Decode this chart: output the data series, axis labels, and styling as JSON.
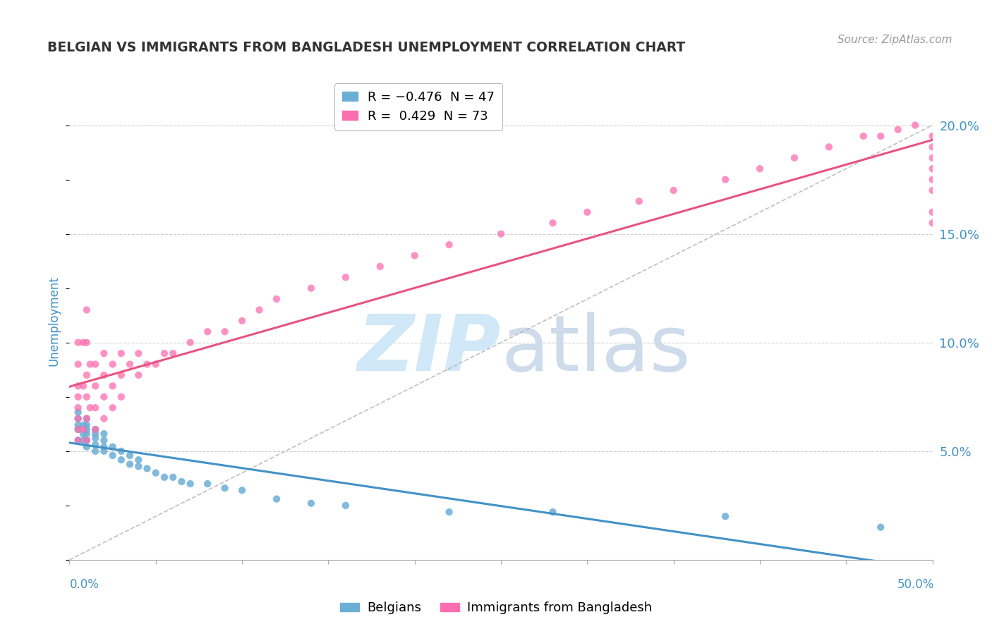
{
  "title": "BELGIAN VS IMMIGRANTS FROM BANGLADESH UNEMPLOYMENT CORRELATION CHART",
  "source": "Source: ZipAtlas.com",
  "ylabel": "Unemployment",
  "blue_color": "#6baed6",
  "pink_color": "#fb6eb0",
  "blue_line_color": "#4292c6",
  "pink_line_color": "#e75480",
  "diag_line_color": "#b0b0b0",
  "background_color": "#ffffff",
  "grid_color": "#d0d0d0",
  "title_color": "#333333",
  "axis_label_color": "#4292c6",
  "watermark_color": "#d0e8f7",
  "xlim": [
    0.0,
    0.5
  ],
  "ylim": [
    0.0,
    0.22
  ],
  "belgians_x": [
    0.005,
    0.005,
    0.005,
    0.005,
    0.005,
    0.008,
    0.008,
    0.008,
    0.01,
    0.01,
    0.01,
    0.01,
    0.01,
    0.01,
    0.015,
    0.015,
    0.015,
    0.015,
    0.015,
    0.02,
    0.02,
    0.02,
    0.02,
    0.025,
    0.025,
    0.03,
    0.03,
    0.035,
    0.035,
    0.04,
    0.04,
    0.045,
    0.05,
    0.055,
    0.06,
    0.065,
    0.07,
    0.08,
    0.09,
    0.1,
    0.12,
    0.14,
    0.16,
    0.22,
    0.28,
    0.38,
    0.47
  ],
  "belgians_y": [
    0.055,
    0.06,
    0.062,
    0.065,
    0.068,
    0.055,
    0.058,
    0.062,
    0.052,
    0.055,
    0.058,
    0.06,
    0.062,
    0.065,
    0.05,
    0.053,
    0.056,
    0.058,
    0.06,
    0.05,
    0.052,
    0.055,
    0.058,
    0.048,
    0.052,
    0.046,
    0.05,
    0.044,
    0.048,
    0.043,
    0.046,
    0.042,
    0.04,
    0.038,
    0.038,
    0.036,
    0.035,
    0.035,
    0.033,
    0.032,
    0.028,
    0.026,
    0.025,
    0.022,
    0.022,
    0.02,
    0.015
  ],
  "bangladesh_x": [
    0.005,
    0.005,
    0.005,
    0.005,
    0.005,
    0.005,
    0.005,
    0.005,
    0.008,
    0.008,
    0.008,
    0.01,
    0.01,
    0.01,
    0.01,
    0.01,
    0.01,
    0.012,
    0.012,
    0.015,
    0.015,
    0.015,
    0.015,
    0.02,
    0.02,
    0.02,
    0.02,
    0.025,
    0.025,
    0.025,
    0.03,
    0.03,
    0.03,
    0.035,
    0.04,
    0.04,
    0.045,
    0.05,
    0.055,
    0.06,
    0.07,
    0.08,
    0.09,
    0.1,
    0.11,
    0.12,
    0.14,
    0.16,
    0.18,
    0.2,
    0.22,
    0.25,
    0.28,
    0.3,
    0.33,
    0.35,
    0.38,
    0.4,
    0.42,
    0.44,
    0.46,
    0.47,
    0.48,
    0.49,
    0.5,
    0.5,
    0.5,
    0.5,
    0.5,
    0.5,
    0.5,
    0.5
  ],
  "bangladesh_y": [
    0.055,
    0.06,
    0.065,
    0.07,
    0.075,
    0.08,
    0.09,
    0.1,
    0.06,
    0.08,
    0.1,
    0.055,
    0.065,
    0.075,
    0.085,
    0.1,
    0.115,
    0.07,
    0.09,
    0.06,
    0.07,
    0.08,
    0.09,
    0.065,
    0.075,
    0.085,
    0.095,
    0.07,
    0.08,
    0.09,
    0.075,
    0.085,
    0.095,
    0.09,
    0.085,
    0.095,
    0.09,
    0.09,
    0.095,
    0.095,
    0.1,
    0.105,
    0.105,
    0.11,
    0.115,
    0.12,
    0.125,
    0.13,
    0.135,
    0.14,
    0.145,
    0.15,
    0.155,
    0.16,
    0.165,
    0.17,
    0.175,
    0.18,
    0.185,
    0.19,
    0.195,
    0.195,
    0.198,
    0.2,
    0.155,
    0.16,
    0.17,
    0.175,
    0.18,
    0.185,
    0.19,
    0.195
  ]
}
